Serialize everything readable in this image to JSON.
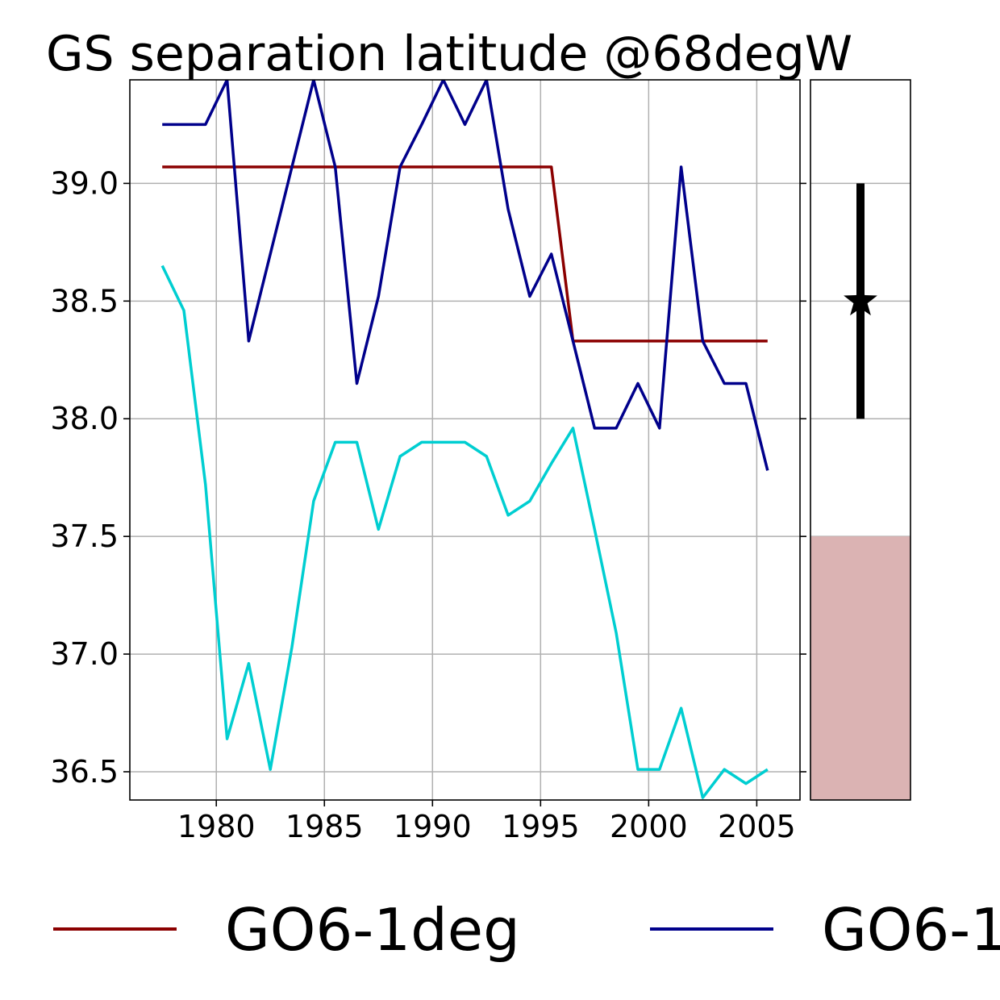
{
  "chart_data": {
    "type": "line",
    "title": "GS separation latitude @68degW",
    "xlabel": "",
    "ylabel": "",
    "xlim": [
      1976,
      2007
    ],
    "ylim": [
      36.38,
      39.44
    ],
    "grid": true,
    "x_ticks": [
      1980,
      1985,
      1990,
      1995,
      2000,
      2005
    ],
    "x_tick_labels": [
      "1980",
      "1985",
      "1990",
      "1995",
      "2000",
      "2005"
    ],
    "y_ticks": [
      36.5,
      37.0,
      37.5,
      38.0,
      38.5,
      39.0
    ],
    "y_tick_labels": [
      "36.5",
      "37.0",
      "37.5",
      "38.0",
      "38.5",
      "39.0"
    ],
    "x": [
      1977.5,
      1978.5,
      1979.5,
      1980.5,
      1981.5,
      1982.5,
      1983.5,
      1984.5,
      1985.5,
      1986.5,
      1987.5,
      1988.5,
      1989.5,
      1990.5,
      1991.5,
      1992.5,
      1993.5,
      1994.5,
      1995.5,
      1996.5,
      1997.5,
      1998.5,
      1999.5,
      2000.5,
      2001.5,
      2002.5,
      2003.5,
      2004.5,
      2005.5
    ],
    "series": [
      {
        "name": "GO6-1deg",
        "color": "#8b0000",
        "values": [
          39.07,
          39.07,
          39.07,
          39.07,
          39.07,
          39.07,
          39.07,
          39.07,
          39.07,
          39.07,
          39.07,
          39.07,
          39.07,
          39.07,
          39.07,
          39.07,
          39.07,
          39.07,
          39.07,
          38.33,
          38.33,
          38.33,
          38.33,
          38.33,
          38.33,
          38.33,
          38.33,
          38.33,
          38.33
        ]
      },
      {
        "name": "GO6-1",
        "color": "#00008b",
        "values": [
          39.25,
          39.25,
          39.25,
          39.44,
          38.33,
          38.7,
          39.07,
          39.44,
          39.07,
          38.15,
          38.52,
          39.07,
          39.25,
          39.44,
          39.25,
          39.44,
          38.89,
          38.52,
          38.7,
          38.33,
          37.96,
          37.96,
          38.15,
          37.96,
          39.07,
          38.33,
          38.15,
          38.15,
          37.78
        ]
      },
      {
        "name": "",
        "color": "#00ced1",
        "values": [
          38.65,
          38.46,
          37.72,
          36.64,
          36.96,
          36.51,
          37.03,
          37.65,
          37.9,
          37.9,
          37.53,
          37.84,
          37.9,
          37.9,
          37.9,
          37.84,
          37.59,
          37.65,
          37.81,
          37.96,
          37.53,
          37.09,
          36.51,
          36.51,
          36.77,
          36.39,
          36.51,
          36.45,
          36.51
        ]
      }
    ],
    "side_panel": {
      "observation": {
        "marker": "star",
        "value": 38.5,
        "range": [
          38.0,
          39.0
        ],
        "color": "#000000"
      },
      "shaded_band": {
        "from": 36.38,
        "to": 37.5,
        "color": "#dbb3b3"
      }
    },
    "legend": {
      "placement": "bottom",
      "entries": [
        {
          "label": "GO6-1deg",
          "color": "#8b0000"
        },
        {
          "label": "GO6-1",
          "color": "#00008b"
        }
      ]
    }
  }
}
